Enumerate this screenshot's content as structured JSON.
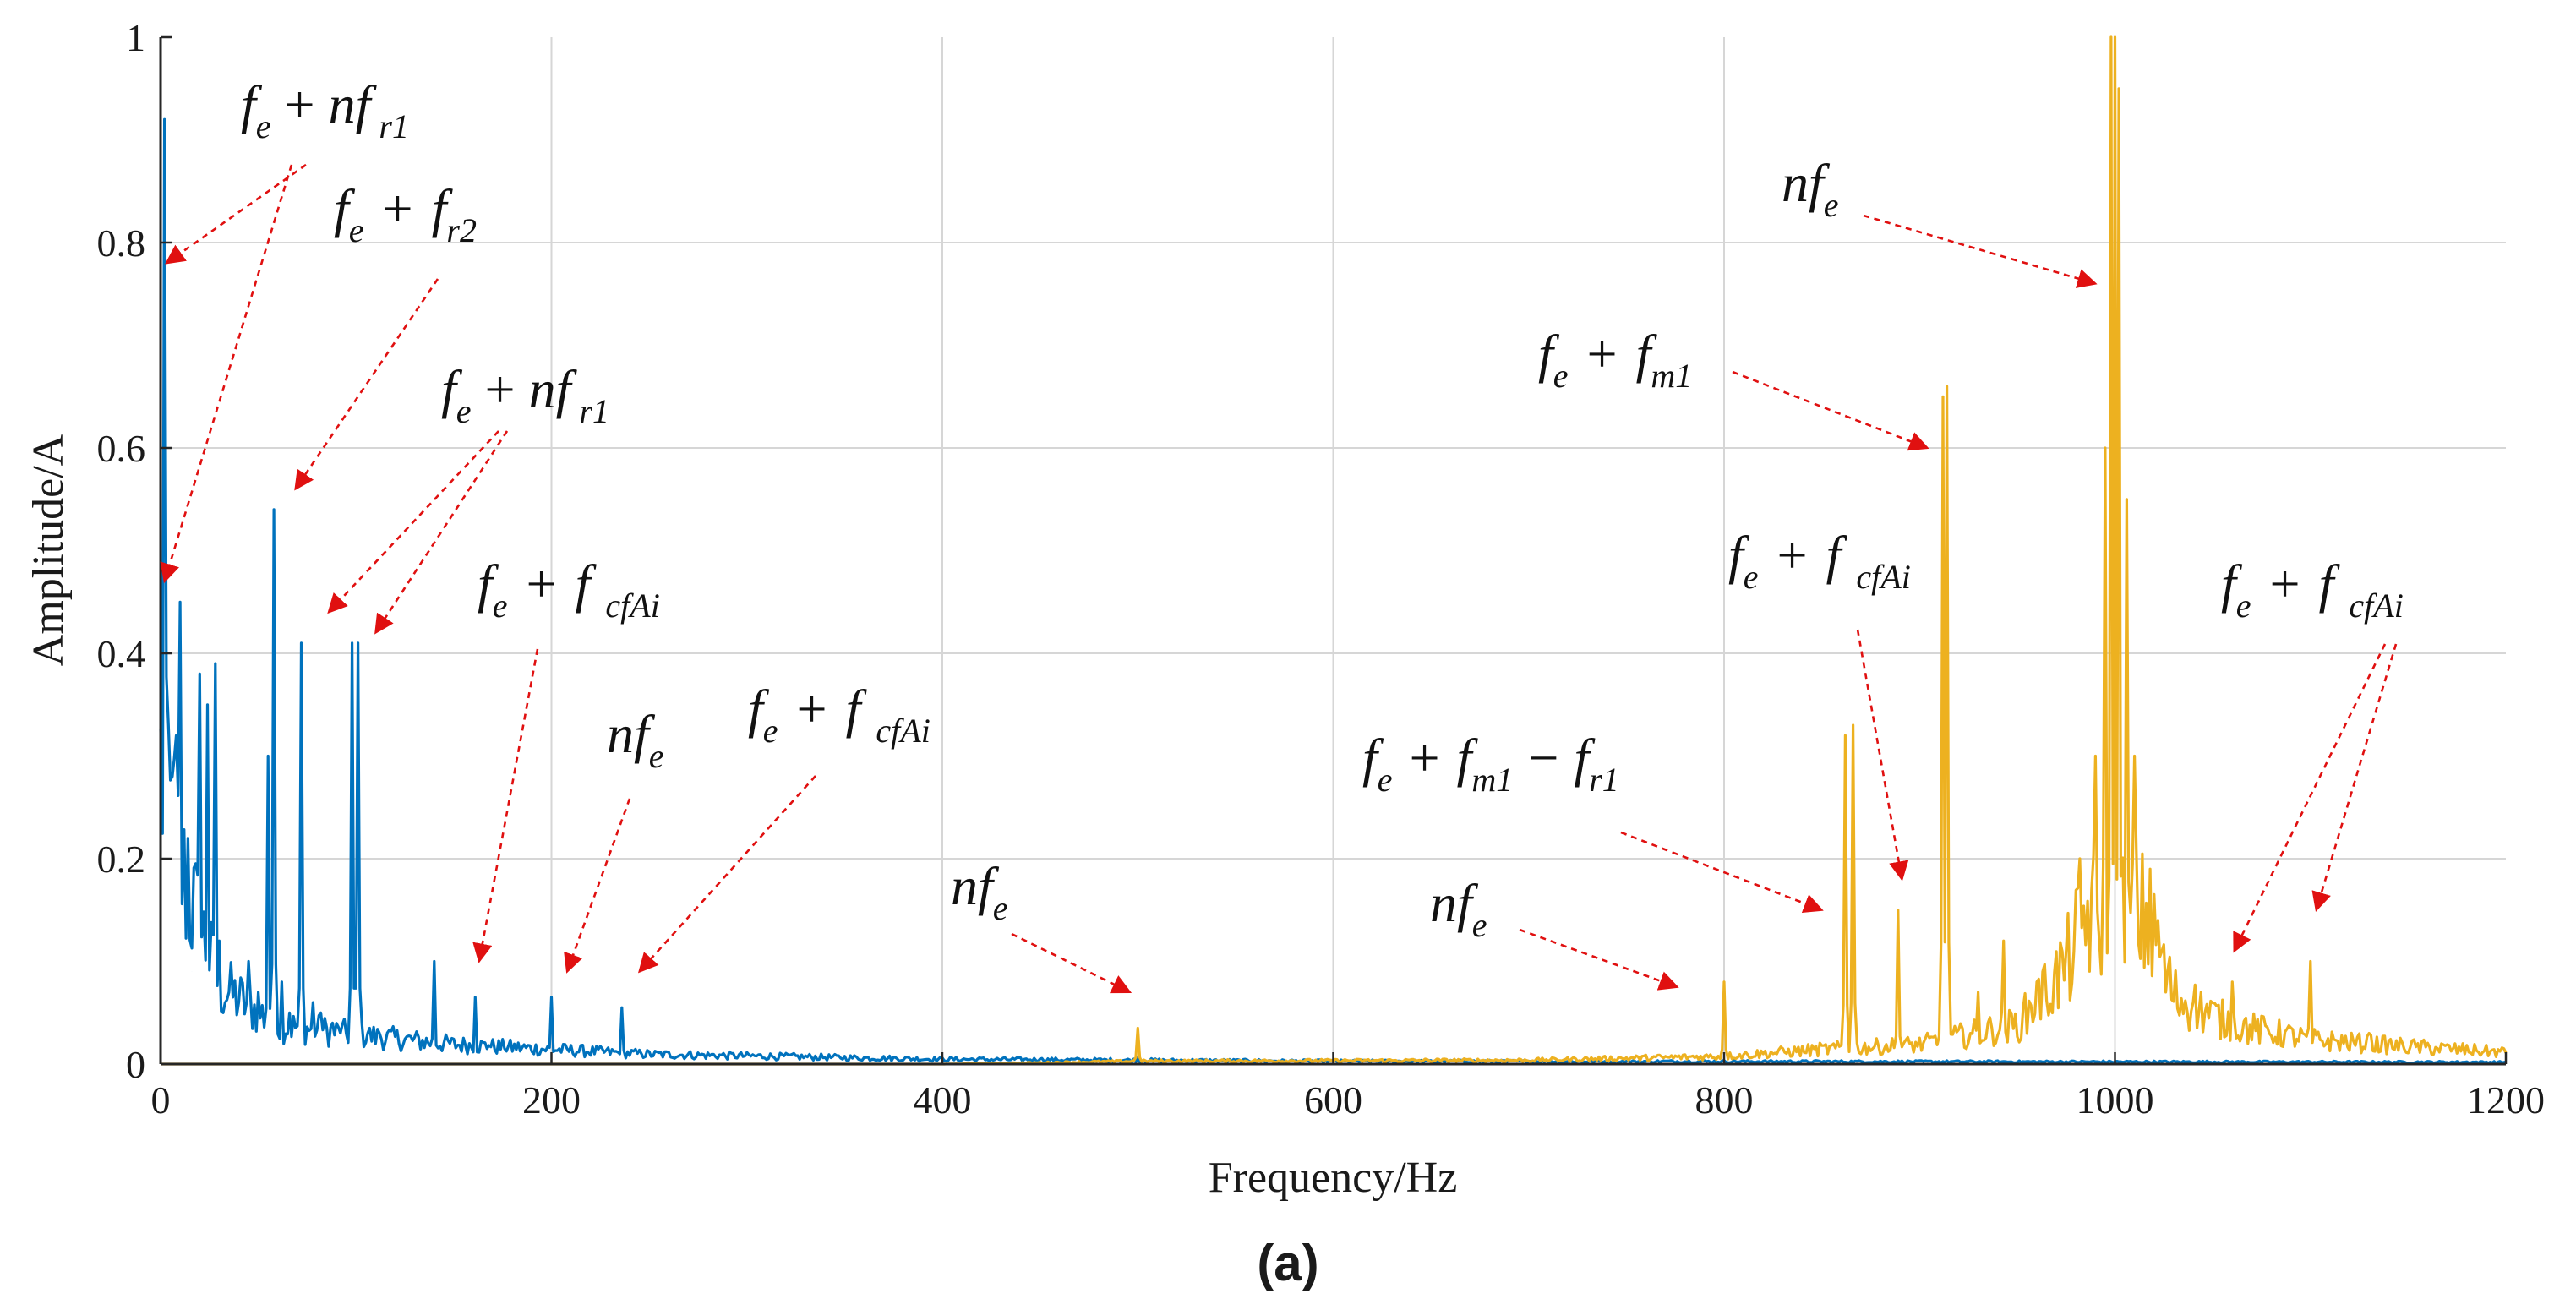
{
  "caption": "(a)",
  "colors": {
    "series1": "#0072BD",
    "series2": "#EDB120",
    "arrow": "#e01010",
    "grid": "#d6d6d6",
    "axis": "#262626"
  },
  "chart_data": {
    "type": "line",
    "title": "",
    "xlabel": "Frequency/Hz",
    "ylabel": "Amplitude/A",
    "xlim": [
      0,
      1200
    ],
    "ylim": [
      0,
      1
    ],
    "xticks": [
      0,
      200,
      400,
      600,
      800,
      1000,
      1200
    ],
    "yticks": [
      0,
      0.2,
      0.4,
      0.6,
      0.8,
      1
    ],
    "xtick_labels": [
      "0",
      "200",
      "400",
      "600",
      "800",
      "1000",
      "1200"
    ],
    "ytick_labels": [
      "0",
      "0.2",
      "0.4",
      "0.6",
      "0.8",
      "1"
    ],
    "grid": true,
    "series": [
      {
        "name": "blue spectrum",
        "color": "#0072BD",
        "peaks": [
          [
            2,
            0.92
          ],
          [
            4,
            0.33
          ],
          [
            6,
            0.28
          ],
          [
            8,
            0.32
          ],
          [
            10,
            0.45
          ],
          [
            12,
            0.12
          ],
          [
            14,
            0.22
          ],
          [
            16,
            0.09
          ],
          [
            18,
            0.05
          ],
          [
            20,
            0.38
          ],
          [
            22,
            0.1
          ],
          [
            24,
            0.35
          ],
          [
            26,
            0.08
          ],
          [
            28,
            0.39
          ],
          [
            30,
            0.12
          ],
          [
            32,
            0.05
          ],
          [
            40,
            0.06
          ],
          [
            45,
            0.1
          ],
          [
            50,
            0.07
          ],
          [
            55,
            0.3
          ],
          [
            58,
            0.54
          ],
          [
            62,
            0.08
          ],
          [
            66,
            0.05
          ],
          [
            72,
            0.41
          ],
          [
            78,
            0.06
          ],
          [
            82,
            0.05
          ],
          [
            88,
            0.04
          ],
          [
            92,
            0.03
          ],
          [
            98,
            0.41
          ],
          [
            101,
            0.41
          ],
          [
            106,
            0.03
          ],
          [
            112,
            0.03
          ],
          [
            120,
            0.025
          ],
          [
            126,
            0.02
          ],
          [
            132,
            0.02
          ],
          [
            140,
            0.1
          ],
          [
            148,
            0.02
          ],
          [
            156,
            0.018
          ],
          [
            161,
            0.065
          ],
          [
            168,
            0.018
          ],
          [
            176,
            0.015
          ],
          [
            182,
            0.014
          ],
          [
            190,
            0.012
          ],
          [
            200,
            0.065
          ],
          [
            208,
            0.012
          ],
          [
            216,
            0.01
          ],
          [
            226,
            0.01
          ],
          [
            236,
            0.055
          ],
          [
            246,
            0.01
          ],
          [
            270,
            0.008
          ],
          [
            300,
            0.007
          ],
          [
            350,
            0.006
          ],
          [
            400,
            0.005
          ],
          [
            450,
            0.005
          ],
          [
            500,
            0.006
          ],
          [
            550,
            0.004
          ],
          [
            600,
            0.003
          ],
          [
            700,
            0.003
          ],
          [
            800,
            0.002
          ],
          [
            900,
            0.002
          ],
          [
            1000,
            0.002
          ],
          [
            1100,
            0.002
          ],
          [
            1200,
            0.002
          ]
        ],
        "floor": [
          [
            0,
            0.3
          ],
          [
            10,
            0.2
          ],
          [
            30,
            0.08
          ],
          [
            60,
            0.04
          ],
          [
            100,
            0.03
          ],
          [
            150,
            0.02
          ],
          [
            250,
            0.01
          ],
          [
            400,
            0.005
          ],
          [
            600,
            0.003
          ],
          [
            1200,
            0.002
          ]
        ]
      },
      {
        "name": "yellow spectrum",
        "color": "#EDB120",
        "peaks": [
          [
            500,
            0.035
          ],
          [
            800,
            0.08
          ],
          [
            862,
            0.32
          ],
          [
            866,
            0.33
          ],
          [
            889,
            0.15
          ],
          [
            912,
            0.65
          ],
          [
            914,
            0.66
          ],
          [
            930,
            0.07
          ],
          [
            943,
            0.12
          ],
          [
            960,
            0.08
          ],
          [
            972,
            0.06
          ],
          [
            982,
            0.2
          ],
          [
            990,
            0.3
          ],
          [
            995,
            0.6
          ],
          [
            998,
            1.0
          ],
          [
            1000,
            1.0
          ],
          [
            1002,
            0.95
          ],
          [
            1006,
            0.55
          ],
          [
            1010,
            0.3
          ],
          [
            1014,
            0.15
          ],
          [
            1018,
            0.19
          ],
          [
            1022,
            0.14
          ],
          [
            1028,
            0.08
          ],
          [
            1040,
            0.06
          ],
          [
            1060,
            0.08
          ],
          [
            1075,
            0.04
          ],
          [
            1100,
            0.1
          ],
          [
            1130,
            0.03
          ]
        ],
        "floor": [
          [
            0,
            0.0
          ],
          [
            400,
            0.0
          ],
          [
            500,
            0.003
          ],
          [
            700,
            0.004
          ],
          [
            800,
            0.008
          ],
          [
            850,
            0.015
          ],
          [
            900,
            0.02
          ],
          [
            950,
            0.04
          ],
          [
            975,
            0.1
          ],
          [
            985,
            0.15
          ],
          [
            1015,
            0.15
          ],
          [
            1030,
            0.07
          ],
          [
            1060,
            0.04
          ],
          [
            1100,
            0.025
          ],
          [
            1150,
            0.018
          ],
          [
            1200,
            0.012
          ]
        ]
      }
    ],
    "annotations": [
      {
        "label_parts": [
          "f",
          "e",
          "+",
          "nf",
          "r1"
        ],
        "arrow_to": [
          [
            3,
            0.78
          ],
          [
            2,
            0.47
          ]
        ]
      },
      {
        "label_parts": [
          "f",
          "e",
          "+",
          "f",
          "r2"
        ],
        "arrow_to": [
          [
            69,
            0.56
          ]
        ]
      },
      {
        "label_parts": [
          "f",
          "e",
          "+",
          "nf",
          "r1"
        ],
        "arrow_to": [
          [
            86,
            0.44
          ],
          [
            110,
            0.42
          ]
        ]
      },
      {
        "label_parts": [
          "f",
          "e",
          "+",
          "f",
          "cfAi"
        ],
        "arrow_to": [
          [
            163,
            0.1
          ]
        ]
      },
      {
        "label_parts": [
          "nf",
          "e"
        ],
        "arrow_to": [
          [
            208,
            0.09
          ]
        ]
      },
      {
        "label_parts": [
          "f",
          "e",
          "+",
          "f",
          "cfAi"
        ],
        "arrow_to": [
          [
            245,
            0.09
          ]
        ]
      },
      {
        "label_parts": [
          "nf",
          "e"
        ],
        "arrow_to": [
          [
            496,
            0.07
          ]
        ]
      },
      {
        "label_parts": [
          "nf",
          "e"
        ],
        "arrow_to": [
          [
            776,
            0.075
          ]
        ]
      },
      {
        "label_parts": [
          "f",
          "e",
          "+",
          "f",
          "m1",
          "−",
          "f",
          "r1"
        ],
        "arrow_to": [
          [
            850,
            0.15
          ]
        ]
      },
      {
        "label_parts": [
          "f",
          "e",
          "+",
          "f",
          "cfAi"
        ],
        "arrow_to": [
          [
            891,
            0.18
          ]
        ]
      },
      {
        "label_parts": [
          "f",
          "e",
          "+",
          "f",
          "m1"
        ],
        "arrow_to": [
          [
            904,
            0.6
          ]
        ]
      },
      {
        "label_parts": [
          "nf",
          "e"
        ],
        "arrow_to": [
          [
            990,
            0.76
          ]
        ]
      },
      {
        "label_parts": [
          "f",
          "e",
          "+",
          "f",
          "cfAi"
        ],
        "arrow_to": [
          [
            1061,
            0.11
          ],
          [
            1103,
            0.15
          ]
        ]
      }
    ]
  }
}
